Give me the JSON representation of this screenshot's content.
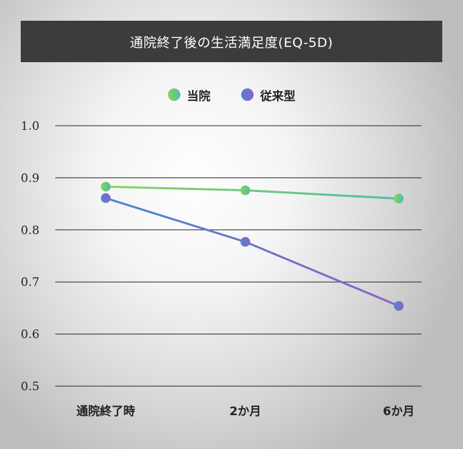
{
  "chart_data": {
    "type": "line",
    "title": "通院終了後の生活満足度(EQ-5D)",
    "categories": [
      "通院終了時",
      "2か月",
      "6か月"
    ],
    "ylim": [
      0.5,
      1.0
    ],
    "yticks": [
      "1.0",
      "0.9",
      "0.8",
      "0.7",
      "0.6",
      "0.5"
    ],
    "grid": true,
    "legend_position": "top-center",
    "series": [
      {
        "name": "当院",
        "values": [
          0.883,
          0.876,
          0.86
        ],
        "color_start": "#8bd25a",
        "color_end": "#4fbfa5"
      },
      {
        "name": "従来型",
        "values": [
          0.861,
          0.777,
          0.654
        ],
        "color_start": "#4b86cf",
        "color_end": "#8a62c8"
      }
    ]
  }
}
